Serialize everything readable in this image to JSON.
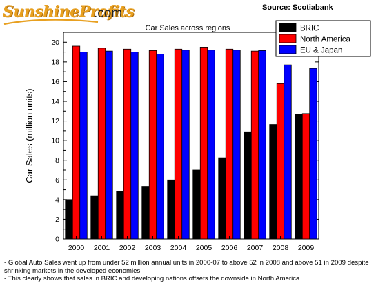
{
  "logo": {
    "brand": "SunshineProfits",
    "suffix": ".com"
  },
  "source": "Source: Scotiabank",
  "colors": {
    "bric": "#000000",
    "north_america": "#ff0000",
    "eu_japan": "#0000ff",
    "logo": "#e8a020"
  },
  "chart_data": {
    "type": "bar",
    "title": "Car Sales across regions",
    "xlabel": "",
    "ylabel": "Car Sales (million units)",
    "categories": [
      "2000",
      "2001",
      "2002",
      "2003",
      "2004",
      "2005",
      "2006",
      "2007",
      "2008",
      "2009"
    ],
    "ylim": [
      0,
      21
    ],
    "yticks": [
      0,
      2,
      4,
      6,
      8,
      10,
      12,
      14,
      16,
      18,
      20
    ],
    "grid": false,
    "legend_position": "top-right",
    "series": [
      {
        "name": "BRIC",
        "color": "#000000",
        "values": [
          4.0,
          4.4,
          4.85,
          5.35,
          6.0,
          7.0,
          8.25,
          10.9,
          11.65,
          12.65
        ]
      },
      {
        "name": "North America",
        "color": "#ff0000",
        "values": [
          19.6,
          19.4,
          19.3,
          19.15,
          19.3,
          19.5,
          19.3,
          19.1,
          15.8,
          12.75
        ]
      },
      {
        "name": "EU & Japan",
        "color": "#0000ff",
        "values": [
          19.0,
          19.1,
          19.0,
          18.8,
          19.2,
          19.2,
          19.2,
          19.15,
          17.7,
          17.35
        ]
      }
    ]
  },
  "footnotes": [
    "- Global Auto Sales went up from under 52 million annual units in 2000-07 to above 52 in 2008 and above 51 in 2009 despite shrinking markets in the developed economies",
    "- This clearly shows that sales in BRIC and developing nations offsets the downside in North America"
  ]
}
